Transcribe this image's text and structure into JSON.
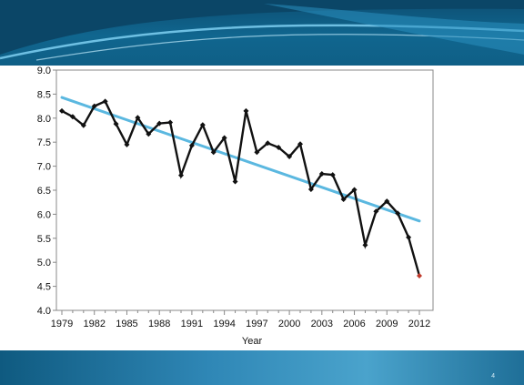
{
  "slide": {
    "page_number": "4"
  },
  "colors": {
    "series_line": "#111111",
    "trend_line": "#5bb8e0",
    "last_point": "#c0392b",
    "banner": "#0f5f86",
    "bottom_band": "#2f87b6"
  },
  "chart_data": {
    "type": "line",
    "title": "",
    "xlabel": "Year",
    "ylabel": "",
    "xlim": [
      1979,
      2012
    ],
    "ylim": [
      4.0,
      9.0
    ],
    "y_ticks": [
      "4.0",
      "4.5",
      "5.0",
      "5.5",
      "6.0",
      "6.5",
      "7.0",
      "7.5",
      "8.0",
      "8.5",
      "9.0"
    ],
    "x_ticks": [
      "1979",
      "1982",
      "1985",
      "1988",
      "1991",
      "1994",
      "1997",
      "2000",
      "2003",
      "2006",
      "2009",
      "2012"
    ],
    "grid": false,
    "legend": "none",
    "series": [
      {
        "x": [
          1979,
          1980,
          1981,
          1982,
          1983,
          1984,
          1985,
          1986,
          1987,
          1988,
          1989,
          1990,
          1991,
          1992,
          1993,
          1994,
          1995,
          1996,
          1997,
          1998,
          1999,
          2000,
          2001,
          2002,
          2003,
          2004,
          2005,
          2006,
          2007,
          2008,
          2009,
          2010,
          2011,
          2012
        ],
        "values": [
          8.15,
          8.03,
          7.85,
          8.25,
          8.35,
          7.88,
          7.45,
          8.01,
          7.67,
          7.89,
          7.91,
          6.81,
          7.43,
          7.86,
          7.29,
          7.59,
          6.68,
          8.15,
          7.29,
          7.48,
          7.39,
          7.2,
          7.46,
          6.52,
          6.84,
          6.82,
          6.31,
          6.51,
          5.36,
          6.06,
          6.27,
          6.02,
          5.52,
          4.72
        ]
      },
      {
        "x": [
          1979,
          2012
        ],
        "values": [
          8.43,
          5.86
        ]
      }
    ]
  }
}
